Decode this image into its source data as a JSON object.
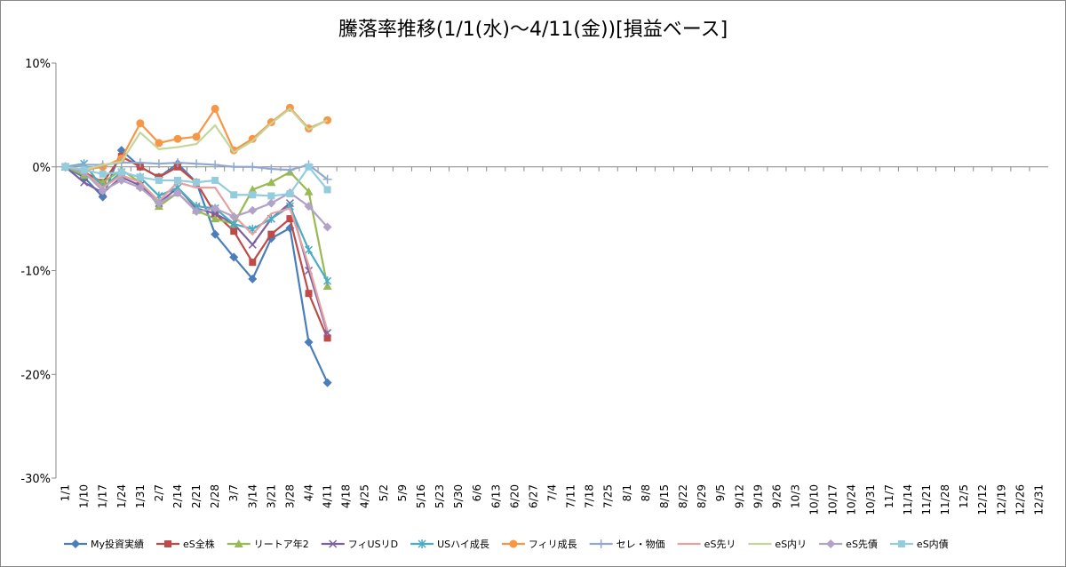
{
  "chart_data": {
    "type": "line",
    "title": "騰落率推移(1/1(水)～4/11(金))[損益ベース]",
    "categories": [
      "1/1",
      "1/10",
      "1/17",
      "1/24",
      "1/31",
      "2/7",
      "2/14",
      "2/21",
      "2/28",
      "3/7",
      "3/14",
      "3/21",
      "3/28",
      "4/4",
      "4/11",
      "4/18",
      "4/25",
      "5/2",
      "5/9",
      "5/16",
      "5/23",
      "5/30",
      "6/6",
      "6/13",
      "6/20",
      "6/27",
      "7/4",
      "7/11",
      "7/18",
      "7/25",
      "8/1",
      "8/8",
      "8/15",
      "8/22",
      "8/29",
      "9/5",
      "9/12",
      "9/19",
      "9/26",
      "10/3",
      "10/10",
      "10/17",
      "10/24",
      "10/31",
      "11/7",
      "11/14",
      "11/21",
      "11/28",
      "12/5",
      "12/12",
      "12/19",
      "12/26",
      "12/31"
    ],
    "series": [
      {
        "name": "My投資実績",
        "color": "#4a7ebb",
        "marker": "diamond",
        "values": [
          0,
          -1,
          -2.9,
          1.6,
          0,
          -1,
          0.3,
          -1.5,
          -6.5,
          -8.7,
          -10.8,
          -6.9,
          -5.9,
          -16.9,
          -20.8,
          null,
          null,
          null,
          null,
          null,
          null,
          null,
          null,
          null,
          null,
          null,
          null,
          null,
          null,
          null,
          null,
          null,
          null,
          null,
          null,
          null,
          null,
          null,
          null,
          null,
          null,
          null,
          null,
          null,
          null,
          null,
          null,
          null,
          null,
          null,
          null,
          null,
          null
        ]
      },
      {
        "name": "eS全株",
        "color": "#be4b48",
        "marker": "square",
        "values": [
          0,
          -0.5,
          -1.5,
          1,
          0,
          -1,
          0,
          -1.5,
          -4.5,
          -6.2,
          -9.2,
          -6.5,
          -5,
          -12.2,
          -16.5,
          null,
          null,
          null,
          null,
          null,
          null,
          null,
          null,
          null,
          null,
          null,
          null,
          null,
          null,
          null,
          null,
          null,
          null,
          null,
          null,
          null,
          null,
          null,
          null,
          null,
          null,
          null,
          null,
          null,
          null,
          null,
          null,
          null,
          null,
          null,
          null,
          null,
          null
        ]
      },
      {
        "name": "リートア年2",
        "color": "#98b954",
        "marker": "triangle",
        "values": [
          0,
          -0.8,
          -1.5,
          -0.3,
          -1.5,
          -3.8,
          -2.5,
          -4.2,
          -5,
          -5.5,
          -2.2,
          -1.5,
          -0.5,
          -2.4,
          -11.5,
          null,
          null,
          null,
          null,
          null,
          null,
          null,
          null,
          null,
          null,
          null,
          null,
          null,
          null,
          null,
          null,
          null,
          null,
          null,
          null,
          null,
          null,
          null,
          null,
          null,
          null,
          null,
          null,
          null,
          null,
          null,
          null,
          null,
          null,
          null,
          null,
          null,
          null
        ]
      },
      {
        "name": "フィUSリD",
        "color": "#7d60a0",
        "marker": "x",
        "values": [
          0,
          -1.5,
          -2.5,
          -1,
          -1.8,
          -3.5,
          -2,
          -4,
          -4.5,
          -5.5,
          -7.5,
          -5,
          -3.5,
          -10,
          -16,
          null,
          null,
          null,
          null,
          null,
          null,
          null,
          null,
          null,
          null,
          null,
          null,
          null,
          null,
          null,
          null,
          null,
          null,
          null,
          null,
          null,
          null,
          null,
          null,
          null,
          null,
          null,
          null,
          null,
          null,
          null,
          null,
          null,
          null,
          null,
          null,
          null,
          null
        ]
      },
      {
        "name": "USハイ成長",
        "color": "#4bacc6",
        "marker": "star",
        "values": [
          0,
          0.3,
          -2,
          -0.5,
          -1,
          -2.8,
          -2,
          -3.8,
          -4,
          -5.5,
          -6,
          -5,
          -3.8,
          -8,
          -11,
          null,
          null,
          null,
          null,
          null,
          null,
          null,
          null,
          null,
          null,
          null,
          null,
          null,
          null,
          null,
          null,
          null,
          null,
          null,
          null,
          null,
          null,
          null,
          null,
          null,
          null,
          null,
          null,
          null,
          null,
          null,
          null,
          null,
          null,
          null,
          null,
          null,
          null
        ]
      },
      {
        "name": "フィリ成長",
        "color": "#f79646",
        "marker": "circle",
        "values": [
          0,
          -0.3,
          0,
          0.8,
          4.2,
          2.3,
          2.7,
          2.9,
          5.6,
          1.6,
          2.7,
          4.3,
          5.7,
          3.7,
          4.5,
          null,
          null,
          null,
          null,
          null,
          null,
          null,
          null,
          null,
          null,
          null,
          null,
          null,
          null,
          null,
          null,
          null,
          null,
          null,
          null,
          null,
          null,
          null,
          null,
          null,
          null,
          null,
          null,
          null,
          null,
          null,
          null,
          null,
          null,
          null,
          null,
          null,
          null
        ]
      },
      {
        "name": "セレ・物価",
        "color": "#92a9cf",
        "marker": "plus",
        "values": [
          0,
          0.2,
          0.2,
          0.4,
          0.4,
          0.3,
          0.4,
          0.3,
          0.2,
          0,
          0,
          -0.2,
          -0.3,
          0.2,
          -1.2,
          null,
          null,
          null,
          null,
          null,
          null,
          null,
          null,
          null,
          null,
          null,
          null,
          null,
          null,
          null,
          null,
          null,
          null,
          null,
          null,
          null,
          null,
          null,
          null,
          null,
          null,
          null,
          null,
          null,
          null,
          null,
          null,
          null,
          null,
          null,
          null,
          null,
          null
        ]
      },
      {
        "name": "eS先リ",
        "color": "#e6a1a0",
        "marker": "none",
        "values": [
          0,
          -0.5,
          -2,
          -0.8,
          -1.5,
          -3.3,
          -1.5,
          -2,
          -2,
          -4.7,
          -6.5,
          -4.5,
          -4,
          -9.5,
          -15.8,
          null,
          null,
          null,
          null,
          null,
          null,
          null,
          null,
          null,
          null,
          null,
          null,
          null,
          null,
          null,
          null,
          null,
          null,
          null,
          null,
          null,
          null,
          null,
          null,
          null,
          null,
          null,
          null,
          null,
          null,
          null,
          null,
          null,
          null,
          null,
          null,
          null,
          null
        ]
      },
      {
        "name": "eS内リ",
        "color": "#c3d69b",
        "marker": "none",
        "values": [
          0,
          -0.3,
          0.2,
          0.5,
          3.3,
          1.7,
          1.9,
          2.2,
          4,
          1.4,
          2.5,
          4.2,
          5.6,
          3.6,
          4.5,
          null,
          null,
          null,
          null,
          null,
          null,
          null,
          null,
          null,
          null,
          null,
          null,
          null,
          null,
          null,
          null,
          null,
          null,
          null,
          null,
          null,
          null,
          null,
          null,
          null,
          null,
          null,
          null,
          null,
          null,
          null,
          null,
          null,
          null,
          null,
          null,
          null,
          null
        ]
      },
      {
        "name": "eS先債",
        "color": "#b3a2c7",
        "marker": "diamond",
        "values": [
          0,
          -0.5,
          -2.3,
          -1.3,
          -2,
          -3.5,
          -2.5,
          -4.3,
          -4,
          -4.8,
          -4.2,
          -3.5,
          -2.5,
          -3.8,
          -5.8,
          null,
          null,
          null,
          null,
          null,
          null,
          null,
          null,
          null,
          null,
          null,
          null,
          null,
          null,
          null,
          null,
          null,
          null,
          null,
          null,
          null,
          null,
          null,
          null,
          null,
          null,
          null,
          null,
          null,
          null,
          null,
          null,
          null,
          null,
          null,
          null,
          null,
          null
        ]
      },
      {
        "name": "eS内債",
        "color": "#93cddd",
        "marker": "square",
        "values": [
          0,
          -0.3,
          -0.7,
          -0.5,
          -1,
          -1.3,
          -1.3,
          -1.5,
          -1.3,
          -2.7,
          -2.7,
          -2.8,
          -2.6,
          0,
          -2.2,
          null,
          null,
          null,
          null,
          null,
          null,
          null,
          null,
          null,
          null,
          null,
          null,
          null,
          null,
          null,
          null,
          null,
          null,
          null,
          null,
          null,
          null,
          null,
          null,
          null,
          null,
          null,
          null,
          null,
          null,
          null,
          null,
          null,
          null,
          null,
          null,
          null,
          null
        ]
      }
    ],
    "ylim": [
      -30,
      10
    ],
    "yticks": [
      {
        "value": -30,
        "label": "-30%"
      },
      {
        "value": -20,
        "label": "-20%"
      },
      {
        "value": -10,
        "label": "-10%"
      },
      {
        "value": 0,
        "label": "0%"
      },
      {
        "value": 10,
        "label": "10%"
      }
    ],
    "grid": false,
    "legend": "bottom"
  }
}
